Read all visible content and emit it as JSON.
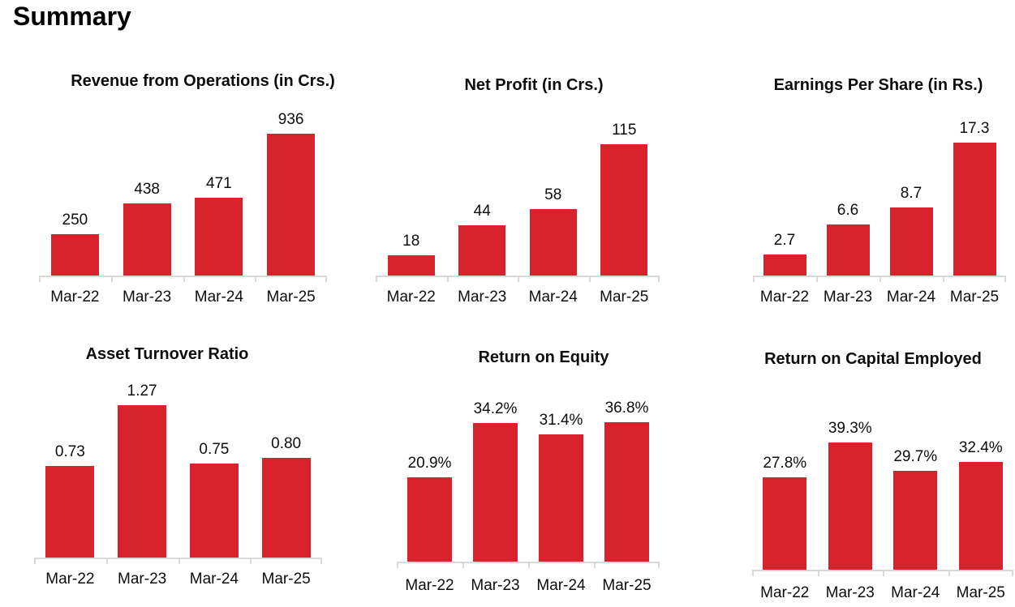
{
  "page_title": "Summary",
  "colors": {
    "bar": "#d8222c",
    "axis": "#d9d9d9",
    "text": "#0d0d0d"
  },
  "chart_data": [
    {
      "type": "bar",
      "title": "Revenue from Operations (in Crs.)",
      "categories": [
        "Mar-22",
        "Mar-23",
        "Mar-24",
        "Mar-25"
      ],
      "values": [
        250,
        438,
        471,
        936
      ],
      "labels": [
        "250",
        "438",
        "471",
        "936"
      ],
      "ylim": [
        0,
        1000
      ],
      "xlabel": "",
      "ylabel": "",
      "grid": false,
      "legend": false,
      "data_labels": "above-bars"
    },
    {
      "type": "bar",
      "title": "Net Profit (in Crs.)",
      "categories": [
        "Mar-22",
        "Mar-23",
        "Mar-24",
        "Mar-25"
      ],
      "values": [
        18,
        44,
        58,
        115
      ],
      "labels": [
        "18",
        "44",
        "58",
        "115"
      ],
      "ylim": [
        0,
        140
      ],
      "xlabel": "",
      "ylabel": "",
      "grid": false,
      "legend": false,
      "data_labels": "above-bars"
    },
    {
      "type": "bar",
      "title": "Earnings Per Share (in Rs.)",
      "categories": [
        "Mar-22",
        "Mar-23",
        "Mar-24",
        "Mar-25"
      ],
      "values": [
        2.7,
        6.6,
        8.7,
        17.3
      ],
      "labels": [
        "2.7",
        "6.6",
        "8.7",
        "17.3"
      ],
      "ylim": [
        0,
        20
      ],
      "xlabel": "",
      "ylabel": "",
      "grid": false,
      "legend": false,
      "data_labels": "above-bars"
    },
    {
      "type": "bar",
      "title": "Asset Turnover Ratio",
      "categories": [
        "Mar-22",
        "Mar-23",
        "Mar-24",
        "Mar-25"
      ],
      "values": [
        0.73,
        1.27,
        0.75,
        0.8
      ],
      "labels": [
        "0.73",
        "1.27",
        "0.75",
        "0.80"
      ],
      "ylim": [
        0,
        1.4
      ],
      "xlabel": "",
      "ylabel": "",
      "grid": false,
      "legend": false,
      "data_labels": "above-bars"
    },
    {
      "type": "bar",
      "title": "Return on Equity",
      "categories": [
        "Mar-22",
        "Mar-23",
        "Mar-24",
        "Mar-25"
      ],
      "values": [
        20.9,
        34.2,
        31.4,
        36.8
      ],
      "labels": [
        "20.9%",
        "34.2%",
        "31.4%",
        "36.8%"
      ],
      "ylim": [
        0,
        40
      ],
      "xlabel": "",
      "ylabel": "",
      "grid": false,
      "legend": false,
      "data_labels": "above-bars"
    },
    {
      "type": "bar",
      "title": "Return on Capital Employed",
      "categories": [
        "Mar-22",
        "Mar-23",
        "Mar-24",
        "Mar-25"
      ],
      "values": [
        27.8,
        39.3,
        29.7,
        32.4
      ],
      "labels": [
        "27.8%",
        "39.3%",
        "29.7%",
        "32.4%"
      ],
      "ylim": [
        0,
        45
      ],
      "xlabel": "",
      "ylabel": "",
      "grid": false,
      "legend": false,
      "data_labels": "above-bars"
    }
  ]
}
